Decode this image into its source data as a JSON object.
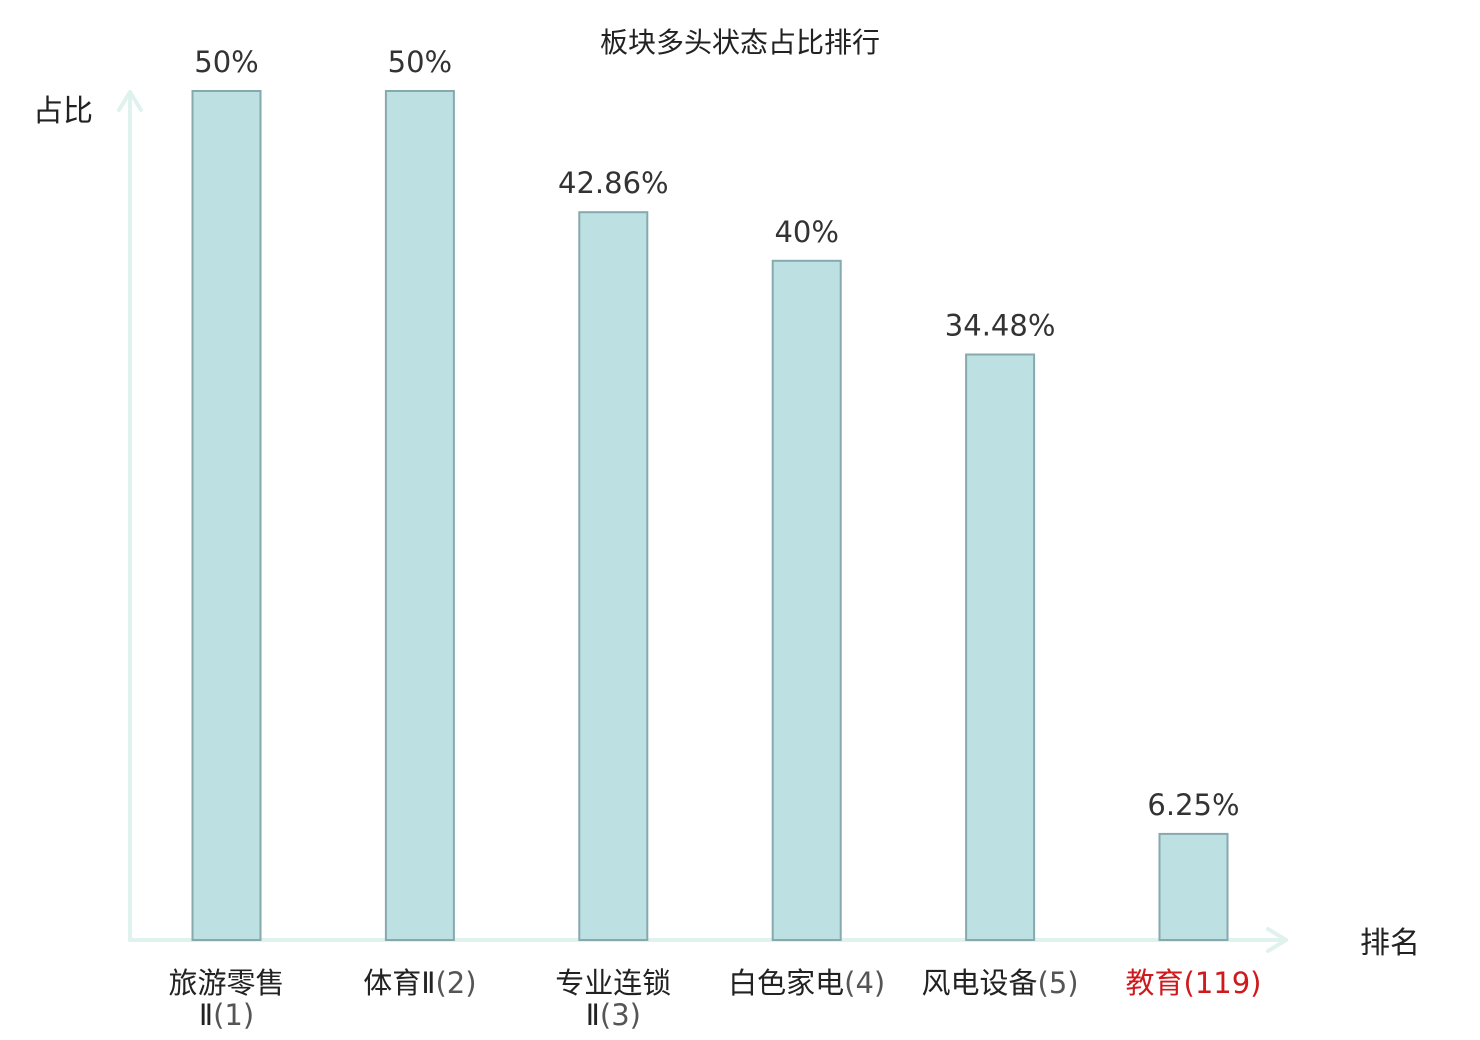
{
  "chart_data": {
    "type": "bar",
    "title": "板块多头状态占比排行",
    "xlabel": "排名",
    "ylabel": "占比",
    "ylim": [
      0,
      50
    ],
    "grid": false,
    "legend": "none",
    "value_suffix": "%",
    "categories": [
      {
        "name": "旅游零售Ⅱ",
        "rank": "(1)",
        "highlight": false
      },
      {
        "name": "体育Ⅱ",
        "rank": "(2)",
        "highlight": false
      },
      {
        "name": "专业连锁Ⅱ",
        "rank": "(3)",
        "highlight": false
      },
      {
        "name": "白色家电",
        "rank": "(4)",
        "highlight": false
      },
      {
        "name": "风电设备",
        "rank": "(5)",
        "highlight": false
      },
      {
        "name": "教育",
        "rank": "(119)",
        "highlight": true
      }
    ],
    "values": [
      50,
      50,
      42.86,
      40,
      34.48,
      6.25
    ],
    "value_labels": [
      "50%",
      "50%",
      "42.86%",
      "40%",
      "34.48%",
      "6.25%"
    ],
    "colors": {
      "bar_fill": "#bde0e3",
      "bar_stroke": "#86a9ad",
      "axis": "#e0f2ee",
      "highlight_text": "#d0191c",
      "text": "#222222"
    }
  }
}
